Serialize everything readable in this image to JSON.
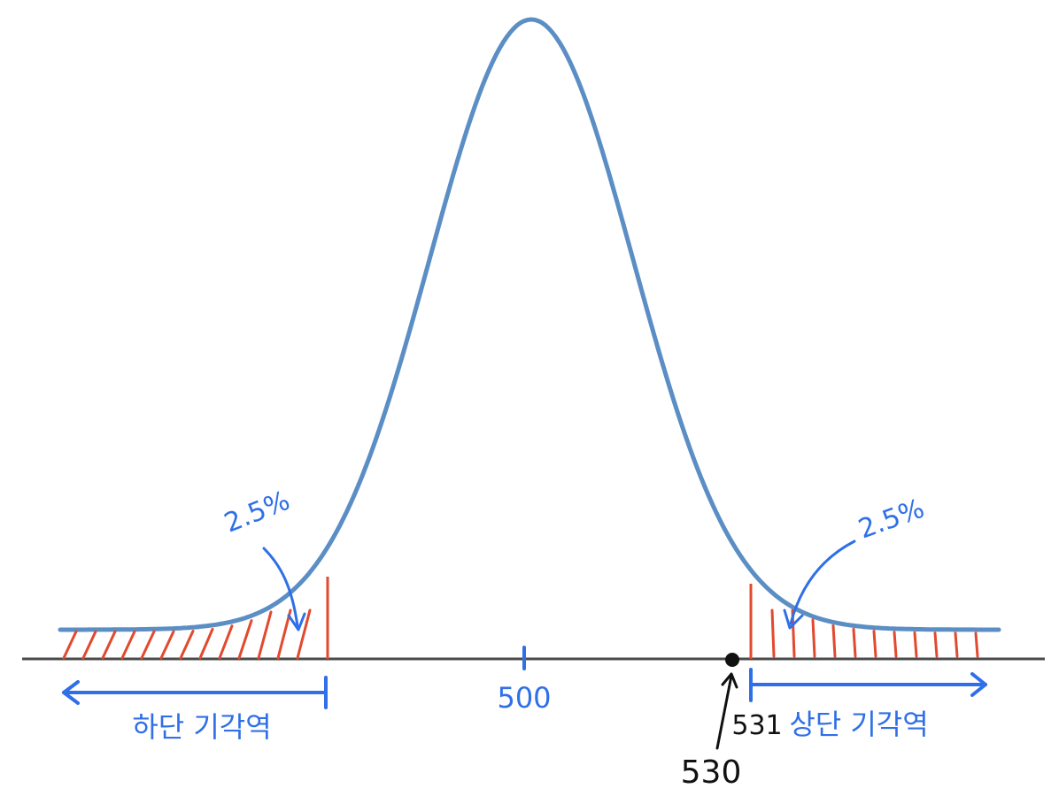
{
  "diagram": {
    "center_value": "500",
    "right_boundary_value": "531",
    "point_value": "530",
    "left_tail_percent": "2.5%",
    "right_tail_percent": "2.5%",
    "left_region_label": "하단 기각역",
    "right_region_label": "상단 기각역"
  },
  "colors": {
    "curve": "#5b8ec4",
    "axis": "#4a4a4a",
    "hatch": "#e2492e",
    "annotation": "#2f6fe8",
    "point": "#111111"
  }
}
